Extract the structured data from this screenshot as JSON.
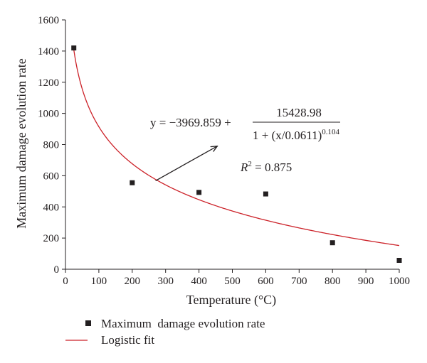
{
  "chart_data": {
    "type": "scatter",
    "xlabel": "Temperature (°C)",
    "ylabel": "Maximum damage evolution rate",
    "xlim": [
      0,
      1000
    ],
    "ylim": [
      0,
      1600
    ],
    "xticks": [
      0,
      100,
      200,
      300,
      400,
      500,
      600,
      700,
      800,
      900,
      1000
    ],
    "yticks": [
      0,
      200,
      400,
      600,
      800,
      1000,
      1200,
      1400,
      1600
    ],
    "grid": false,
    "legend_position": "bottom-left",
    "series": [
      {
        "name": "Maximum  damage evolution rate",
        "kind": "scatter",
        "marker": "square",
        "color": "#231f20",
        "points": [
          {
            "x": 25,
            "y": 1420
          },
          {
            "x": 200,
            "y": 555
          },
          {
            "x": 400,
            "y": 493
          },
          {
            "x": 600,
            "y": 483
          },
          {
            "x": 800,
            "y": 170
          },
          {
            "x": 1000,
            "y": 57
          }
        ]
      },
      {
        "name": "Logistic fit",
        "kind": "line",
        "color": "#cc2229",
        "model": {
          "a": -3969.859,
          "b": 15428.98,
          "c": 0.0611,
          "p": 0.104
        },
        "x_range": [
          25,
          1000
        ]
      }
    ],
    "annotations": {
      "equation": {
        "y_part": "y = −3969.859 +",
        "numerator": "15428.98",
        "denominator_base": "1 + (x/0.0611)",
        "denominator_exp": "0.104"
      },
      "r2": {
        "label": "R",
        "sup": "2",
        "value": " = 0.875"
      },
      "arrow": {
        "from": {
          "x": 270,
          "y": 568
        },
        "to": {
          "x": 455,
          "y": 790
        }
      }
    }
  }
}
